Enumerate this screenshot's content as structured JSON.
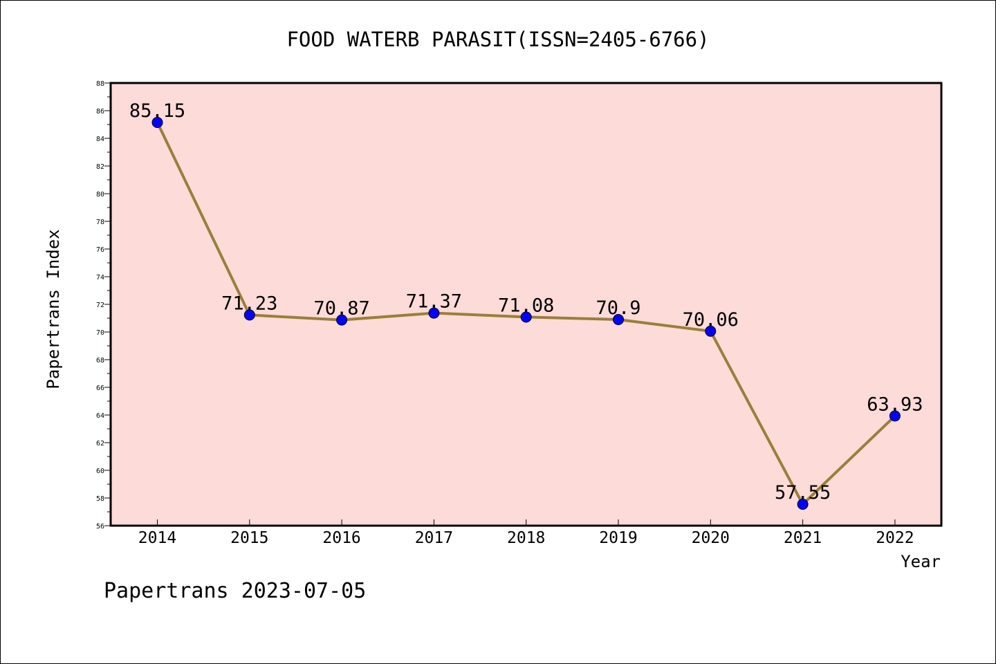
{
  "chart_data": {
    "type": "line",
    "title": "FOOD WATERB PARASIT(ISSN=2405-6766)",
    "xlabel": "Year",
    "ylabel": "Papertrans Index",
    "categories": [
      "2014",
      "2015",
      "2016",
      "2017",
      "2018",
      "2019",
      "2020",
      "2021",
      "2022"
    ],
    "values": [
      85.15,
      71.23,
      70.87,
      71.37,
      71.08,
      70.9,
      70.06,
      57.55,
      63.93
    ],
    "value_labels": [
      "85.15",
      "71.23",
      "70.87",
      "71.37",
      "71.08",
      "70.9",
      "70.06",
      "57.55",
      "63.93"
    ],
    "ylim": [
      56,
      88
    ],
    "yticks": [
      "56",
      "58",
      "60",
      "62",
      "64",
      "66",
      "68",
      "70",
      "72",
      "74",
      "76",
      "78",
      "80",
      "82",
      "84",
      "86",
      "88"
    ],
    "grid": false,
    "legend": "none",
    "footer": "Papertrans 2023-07-05",
    "colors": {
      "plot_background": "#fddbd8",
      "line": "#9a7f3a",
      "marker": "#0000ff"
    }
  }
}
